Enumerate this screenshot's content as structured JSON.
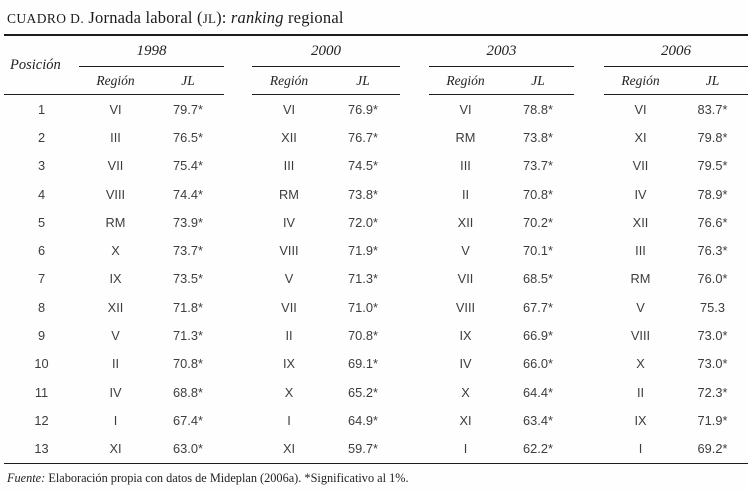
{
  "title": {
    "cuadro": "CUADRO D.",
    "text_before": " Jornada laboral (",
    "smallcaps": "JL",
    "text_mid": "): ",
    "italic_word": "ranking",
    "text_after": " regional"
  },
  "table": {
    "posicion_header": "Posición",
    "years": [
      "1998",
      "2000",
      "2003",
      "2006"
    ],
    "subheaders": {
      "region": "Región",
      "jl": "JL"
    },
    "rows": [
      {
        "pos": "1",
        "cells": [
          [
            "VI",
            "79.7*"
          ],
          [
            "VI",
            "76.9*"
          ],
          [
            "VI",
            "78.8*"
          ],
          [
            "VI",
            "83.7*"
          ]
        ]
      },
      {
        "pos": "2",
        "cells": [
          [
            "III",
            "76.5*"
          ],
          [
            "XII",
            "76.7*"
          ],
          [
            "RM",
            "73.8*"
          ],
          [
            "XI",
            "79.8*"
          ]
        ]
      },
      {
        "pos": "3",
        "cells": [
          [
            "VII",
            "75.4*"
          ],
          [
            "III",
            "74.5*"
          ],
          [
            "III",
            "73.7*"
          ],
          [
            "VII",
            "79.5*"
          ]
        ]
      },
      {
        "pos": "4",
        "cells": [
          [
            "VIII",
            "74.4*"
          ],
          [
            "RM",
            "73.8*"
          ],
          [
            "II",
            "70.8*"
          ],
          [
            "IV",
            "78.9*"
          ]
        ]
      },
      {
        "pos": "5",
        "cells": [
          [
            "RM",
            "73.9*"
          ],
          [
            "IV",
            "72.0*"
          ],
          [
            "XII",
            "70.2*"
          ],
          [
            "XII",
            "76.6*"
          ]
        ]
      },
      {
        "pos": "6",
        "cells": [
          [
            "X",
            "73.7*"
          ],
          [
            "VIII",
            "71.9*"
          ],
          [
            "V",
            "70.1*"
          ],
          [
            "III",
            "76.3*"
          ]
        ]
      },
      {
        "pos": "7",
        "cells": [
          [
            "IX",
            "73.5*"
          ],
          [
            "V",
            "71.3*"
          ],
          [
            "VII",
            "68.5*"
          ],
          [
            "RM",
            "76.0*"
          ]
        ]
      },
      {
        "pos": "8",
        "cells": [
          [
            "XII",
            "71.8*"
          ],
          [
            "VII",
            "71.0*"
          ],
          [
            "VIII",
            "67.7*"
          ],
          [
            "V",
            "75.3"
          ]
        ]
      },
      {
        "pos": "9",
        "cells": [
          [
            "V",
            "71.3*"
          ],
          [
            "II",
            "70.8*"
          ],
          [
            "IX",
            "66.9*"
          ],
          [
            "VIII",
            "73.0*"
          ]
        ]
      },
      {
        "pos": "10",
        "cells": [
          [
            "II",
            "70.8*"
          ],
          [
            "IX",
            "69.1*"
          ],
          [
            "IV",
            "66.0*"
          ],
          [
            "X",
            "73.0*"
          ]
        ]
      },
      {
        "pos": "11",
        "cells": [
          [
            "IV",
            "68.8*"
          ],
          [
            "X",
            "65.2*"
          ],
          [
            "X",
            "64.4*"
          ],
          [
            "II",
            "72.3*"
          ]
        ]
      },
      {
        "pos": "12",
        "cells": [
          [
            "I",
            "67.4*"
          ],
          [
            "I",
            "64.9*"
          ],
          [
            "XI",
            "63.4*"
          ],
          [
            "IX",
            "71.9*"
          ]
        ]
      },
      {
        "pos": "13",
        "cells": [
          [
            "XI",
            "63.0*"
          ],
          [
            "XI",
            "59.7*"
          ],
          [
            "I",
            "62.2*"
          ],
          [
            "I",
            "69.2*"
          ]
        ]
      }
    ]
  },
  "footer": {
    "source_label": "Fuente:",
    "source_text": " Elaboración propia con datos de Mideplan (2006a). *Significativo al 1%."
  }
}
